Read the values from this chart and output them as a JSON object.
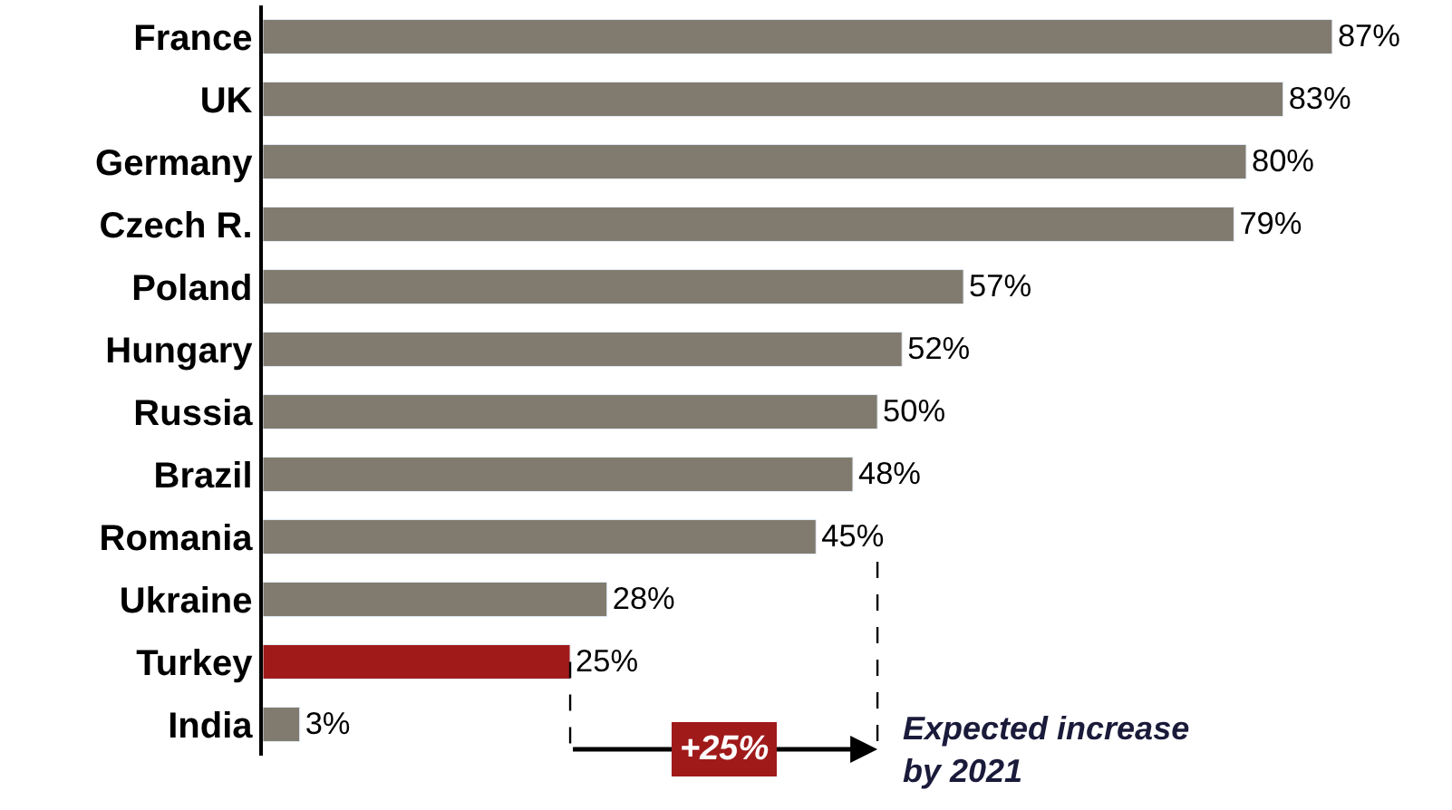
{
  "chart_data": {
    "type": "bar",
    "orientation": "horizontal",
    "categories": [
      "France",
      "UK",
      "Germany",
      "Czech R.",
      "Poland",
      "Hungary",
      "Russia",
      "Brazil",
      "Romania",
      "Ukraine",
      "Turkey",
      "India"
    ],
    "values": [
      87,
      83,
      80,
      79,
      57,
      52,
      50,
      48,
      45,
      28,
      25,
      3
    ],
    "colors": [
      "#807b6e",
      "#807b6e",
      "#807b6e",
      "#807b6e",
      "#807b6e",
      "#807b6e",
      "#807b6e",
      "#807b6e",
      "#807b6e",
      "#807b6e",
      "#a01a1a",
      "#807b6e"
    ],
    "value_labels": [
      "87%",
      "83%",
      "80%",
      "79%",
      "57%",
      "52%",
      "50%",
      "48%",
      "45%",
      "28%",
      "25%",
      "3%"
    ],
    "tick_labels": "y",
    "ref_lines": [
      {
        "axis": "x",
        "value": 25,
        "color": "#000000",
        "line_style": "dashed"
      },
      {
        "axis": "x",
        "value": 50,
        "color": "#000000",
        "line_style": "dashed"
      }
    ],
    "annotations": [
      "+25%",
      "Expected increase\nby 2021"
    ]
  }
}
